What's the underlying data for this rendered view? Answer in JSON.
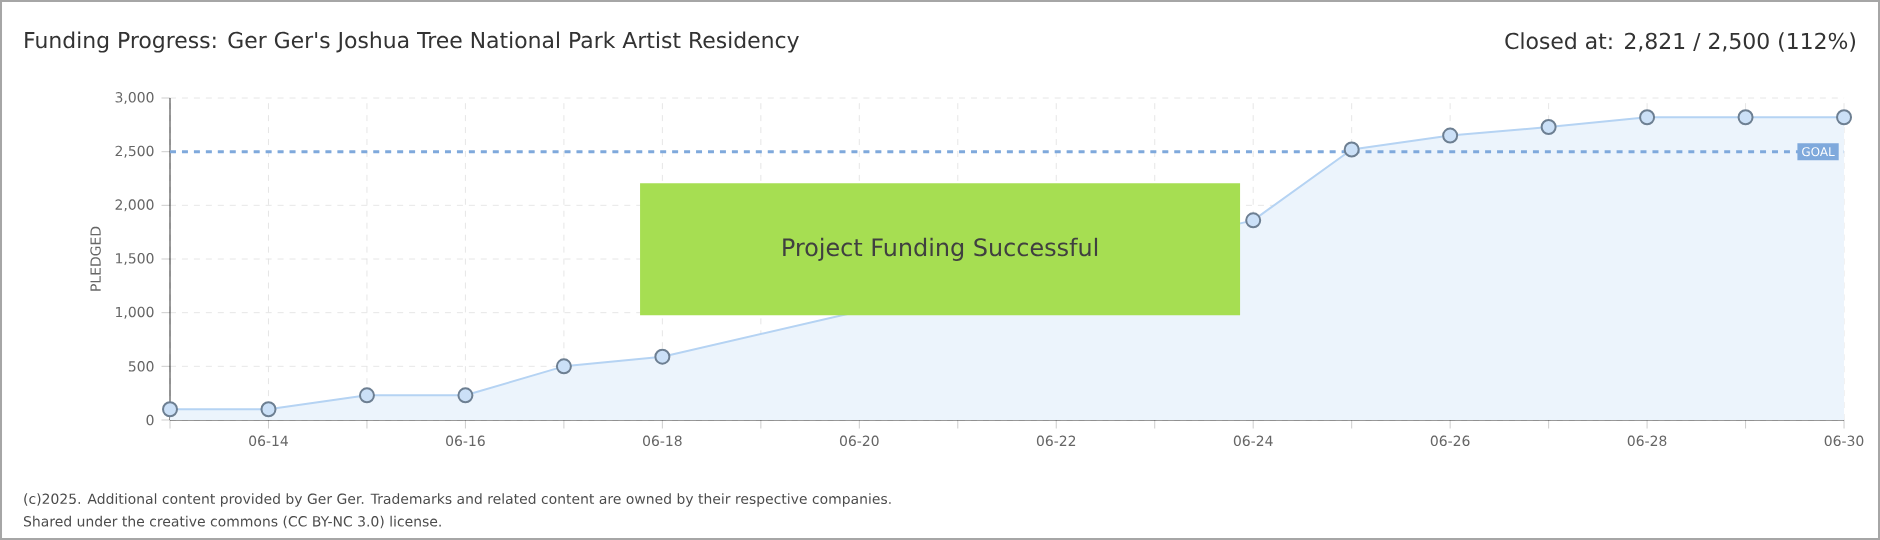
{
  "chart_data": {
    "type": "area",
    "title": "Funding Progress: Ger Ger's Joshua Tree National Park Artist Residency",
    "ylabel": "PLEDGED",
    "categories": [
      null,
      "06-14",
      null,
      "06-16",
      null,
      "06-18",
      null,
      "06-20",
      null,
      "06-22",
      null,
      "06-24",
      null,
      "06-26",
      null,
      "06-28",
      null,
      "06-30"
    ],
    "series": [
      {
        "color": "#b5d3f3",
        "values": [
          100,
          100,
          230,
          230,
          500,
          590,
          null,
          null,
          null,
          null,
          null,
          1860,
          2520,
          2650,
          2730,
          2821,
          2821,
          2821
        ]
      }
    ],
    "ylim": [
      0,
      3000
    ],
    "yticks": [
      0,
      500,
      {
        "value": 1000,
        "label": "1,000"
      },
      {
        "value": 1500,
        "label": "1,500"
      },
      {
        "value": 2000,
        "label": "2,000"
      },
      {
        "value": 2500,
        "label": "2,500"
      },
      {
        "value": 3000,
        "label": "3,000"
      }
    ],
    "ref_lines": [
      {
        "axis": "y",
        "value": 2500,
        "label": "GOAL",
        "color": "#7fa9dc",
        "line_style": "dashed"
      }
    ],
    "grid": true,
    "marker": "circle",
    "annotations": [
      "Closed at:  2,821 /  2,500 (112%)",
      "Project Funding Successful",
      "(c)2025. Additional content provided by Ger Ger. Trademarks and related content are owned by their respective companies.",
      "Shared under the creative commons (CC BY-NC 3.0) license."
    ]
  }
}
